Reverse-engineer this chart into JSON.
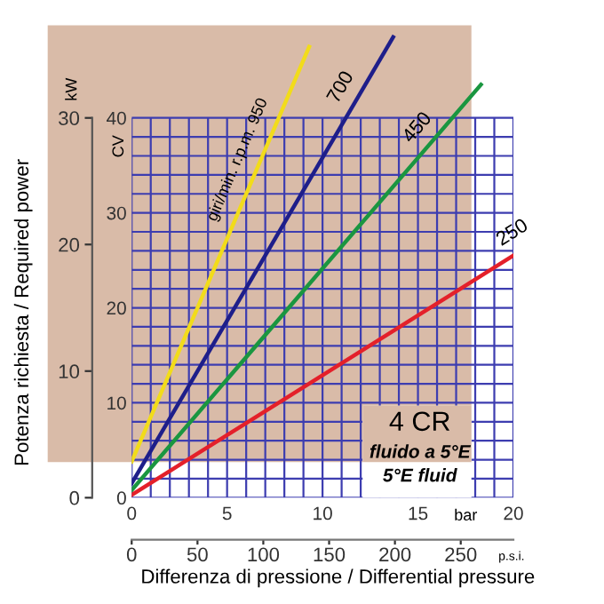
{
  "chart_data": {
    "type": "line",
    "xlabel": "Differenza di pressione / Differential pressure",
    "y2label": "Potenza richiesta / Required power",
    "series": [
      {
        "name": "giri/min. r.p.m. 950",
        "color": "#f2dc1a",
        "x": [
          0,
          9.3
        ],
        "values": [
          3.8,
          47.5
        ]
      },
      {
        "name": "700",
        "color": "#1e1e8a",
        "x": [
          0,
          13.7
        ],
        "values": [
          1.5,
          48.5
        ]
      },
      {
        "name": "450",
        "color": "#1a9640",
        "x": [
          0,
          18.3
        ],
        "values": [
          0.8,
          43.5
        ]
      },
      {
        "name": "250",
        "color": "#e4202a",
        "x": [
          0,
          20
        ],
        "values": [
          0.3,
          25.5
        ]
      }
    ],
    "xlim": [
      0,
      20
    ],
    "xticks": [
      0,
      {
        "value": 1,
        "label": null
      },
      {
        "value": 2,
        "label": null
      },
      {
        "value": 3,
        "label": null
      },
      {
        "value": 4,
        "label": null
      },
      5,
      {
        "value": 6,
        "label": null
      },
      {
        "value": 7,
        "label": null
      },
      {
        "value": 8,
        "label": null
      },
      {
        "value": 9,
        "label": null
      },
      10,
      {
        "value": 11,
        "label": null
      },
      {
        "value": 12,
        "label": null
      },
      {
        "value": 13,
        "label": null
      },
      {
        "value": 14,
        "label": null
      },
      15,
      {
        "value": 16,
        "label": null
      },
      {
        "value": 17,
        "label": null
      },
      {
        "value": 18,
        "label": null
      },
      {
        "value": 19,
        "label": null
      },
      20
    ],
    "ylim": [
      0,
      50
    ],
    "yticks": [
      0,
      {
        "value": 2,
        "label": null
      },
      {
        "value": 4,
        "label": null
      },
      {
        "value": 6,
        "label": null
      },
      {
        "value": 8,
        "label": null
      },
      10,
      {
        "value": 12,
        "label": null
      },
      {
        "value": 14,
        "label": null
      },
      {
        "value": 16,
        "label": null
      },
      {
        "value": 18,
        "label": null
      },
      20,
      {
        "value": 22,
        "label": null
      },
      {
        "value": 24,
        "label": null
      },
      {
        "value": 26,
        "label": null
      },
      {
        "value": 28,
        "label": null
      },
      30,
      {
        "value": 32,
        "label": null
      },
      {
        "value": 34,
        "label": null
      },
      {
        "value": 36,
        "label": null
      },
      {
        "value": 38,
        "label": null
      },
      40
    ],
    "y2lim": [
      0,
      37.5
    ],
    "y2ticks": [
      0,
      10,
      20,
      30
    ],
    "x2lim": [
      0,
      290
    ],
    "x2ticks": [
      0,
      50,
      100,
      150,
      200,
      250
    ],
    "grid": true,
    "legend": false,
    "marker": "none",
    "line_style": "solid",
    "annotations": [
      "bar",
      "p.s.i.",
      "CV",
      "kW",
      "4 CR",
      "fluido a 5°E",
      "5°E fluid"
    ]
  }
}
